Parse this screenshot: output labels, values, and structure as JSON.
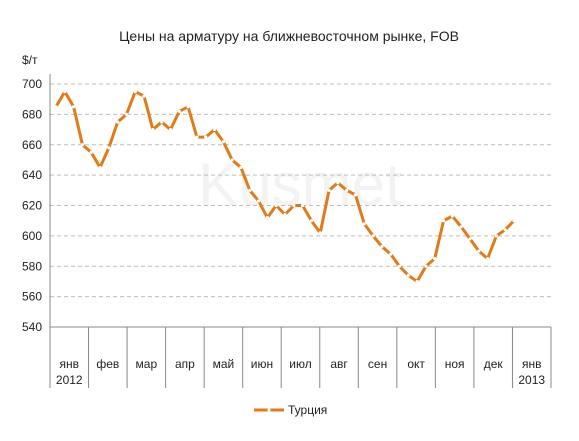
{
  "chart_data": {
    "type": "line",
    "title": "Цены на арматуру на ближневосточном рынке, FOB",
    "ylabel": "$/т",
    "ylim": [
      540,
      700
    ],
    "yticks": [
      540,
      560,
      580,
      600,
      620,
      640,
      660,
      680,
      700
    ],
    "grid": true,
    "legend_position": "bottom",
    "watermark": "Kusmet",
    "month_labels": [
      {
        "label": "янв",
        "year": "2012"
      },
      {
        "label": "фев",
        "year": ""
      },
      {
        "label": "мар",
        "year": ""
      },
      {
        "label": "апр",
        "year": ""
      },
      {
        "label": "май",
        "year": ""
      },
      {
        "label": "июн",
        "year": ""
      },
      {
        "label": "июл",
        "year": ""
      },
      {
        "label": "авг",
        "year": ""
      },
      {
        "label": "сен",
        "year": ""
      },
      {
        "label": "окт",
        "year": ""
      },
      {
        "label": "ноя",
        "year": ""
      },
      {
        "label": "дек",
        "year": ""
      },
      {
        "label": "янв",
        "year": "2013"
      }
    ],
    "series": [
      {
        "name": "Турция",
        "color": "#e07b1a",
        "values": [
          685,
          695,
          685,
          660,
          655,
          645,
          658,
          675,
          680,
          695,
          692,
          670,
          675,
          670,
          682,
          685,
          665,
          665,
          670,
          662,
          650,
          645,
          630,
          623,
          612,
          620,
          614,
          620,
          620,
          610,
          602,
          630,
          635,
          630,
          627,
          608,
          600,
          593,
          588,
          580,
          574,
          570,
          580,
          585,
          610,
          613,
          606,
          598,
          590,
          585,
          600,
          604,
          610
        ]
      }
    ]
  }
}
